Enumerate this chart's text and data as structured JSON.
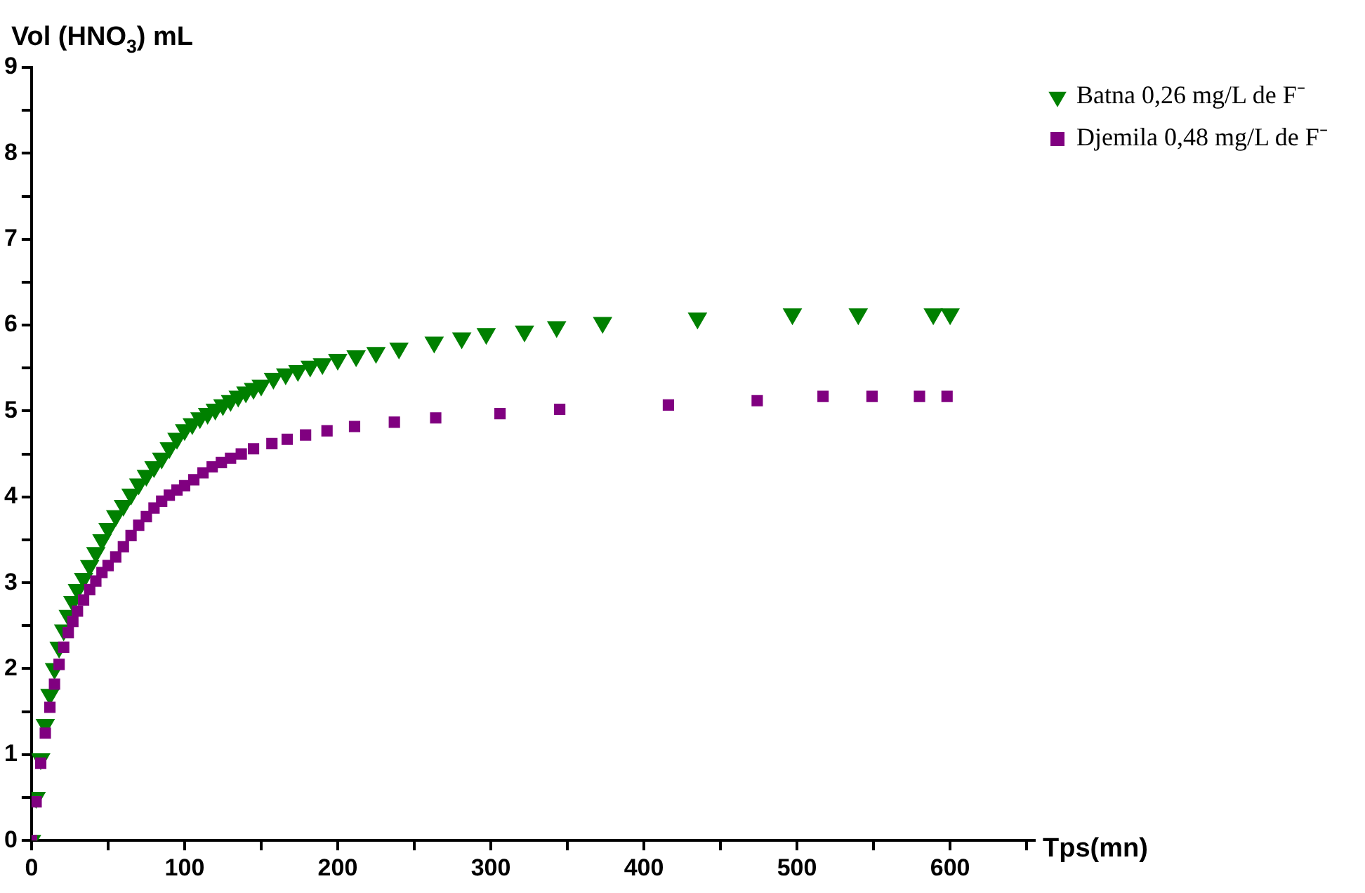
{
  "chart_data": {
    "type": "scatter",
    "xlabel": "Tps(mn)",
    "ylabel": "Vol (HNO$_{3}$) mL",
    "xlim": [
      0,
      655
    ],
    "ylim": [
      0,
      9
    ],
    "xticks": [
      0,
      {
        "value": 50,
        "label": null
      },
      100,
      {
        "value": 150,
        "label": null
      },
      200,
      {
        "value": 250,
        "label": null
      },
      300,
      {
        "value": 350,
        "label": null
      },
      400,
      {
        "value": 450,
        "label": null
      },
      500,
      {
        "value": 550,
        "label": null
      },
      600,
      {
        "value": 650,
        "label": null
      }
    ],
    "yticks": [
      0,
      {
        "value": 0.5,
        "label": null
      },
      1,
      {
        "value": 1.5,
        "label": null
      },
      2,
      {
        "value": 2.5,
        "label": null
      },
      3,
      {
        "value": 3.5,
        "label": null
      },
      4,
      {
        "value": 4.5,
        "label": null
      },
      5,
      {
        "value": 5.5,
        "label": null
      },
      6,
      {
        "value": 6.5,
        "label": null
      },
      7,
      {
        "value": 7.5,
        "label": null
      },
      8,
      {
        "value": 8.5,
        "label": null
      },
      9
    ],
    "grid": false,
    "legend": "top right",
    "series": [
      {
        "name": "Batna 0,26 mg/L de F⁻",
        "color": "#008000",
        "marker": "triangle",
        "x": [
          0,
          3,
          6,
          9,
          12,
          15,
          18,
          21,
          24,
          27,
          30,
          34,
          38,
          42,
          46,
          50,
          55,
          60,
          65,
          70,
          75,
          80,
          85,
          90,
          95,
          100,
          105,
          110,
          115,
          120,
          125,
          130,
          135,
          140,
          145,
          150,
          158,
          166,
          174,
          182,
          190,
          200,
          212,
          225,
          240,
          263,
          281,
          297,
          322,
          343,
          373,
          435,
          497,
          540,
          589,
          600
        ],
        "values": [
          0,
          0.5,
          0.95,
          1.35,
          1.7,
          2.0,
          2.25,
          2.45,
          2.62,
          2.78,
          2.92,
          3.05,
          3.2,
          3.35,
          3.5,
          3.63,
          3.78,
          3.9,
          4.03,
          4.15,
          4.25,
          4.35,
          4.45,
          4.57,
          4.68,
          4.78,
          4.85,
          4.92,
          4.97,
          5.02,
          5.07,
          5.12,
          5.17,
          5.22,
          5.26,
          5.3,
          5.38,
          5.43,
          5.47,
          5.52,
          5.55,
          5.6,
          5.64,
          5.68,
          5.73,
          5.8,
          5.85,
          5.9,
          5.93,
          5.98,
          6.03,
          6.08,
          6.13,
          6.13,
          6.13,
          6.13
        ]
      },
      {
        "name": "Djemila 0,48 mg/L de F⁻",
        "color": "#800080",
        "marker": "square",
        "x": [
          0,
          3,
          6,
          9,
          12,
          15,
          18,
          21,
          24,
          27,
          30,
          34,
          38,
          42,
          46,
          50,
          55,
          60,
          65,
          70,
          75,
          80,
          85,
          90,
          95,
          100,
          106,
          112,
          118,
          124,
          130,
          137,
          145,
          157,
          167,
          179,
          193,
          211,
          237,
          264,
          306,
          345,
          416,
          474,
          517,
          549,
          580,
          598
        ],
        "values": [
          0,
          0.45,
          0.9,
          1.25,
          1.55,
          1.82,
          2.05,
          2.25,
          2.42,
          2.55,
          2.67,
          2.8,
          2.92,
          3.02,
          3.12,
          3.2,
          3.3,
          3.42,
          3.55,
          3.67,
          3.77,
          3.87,
          3.95,
          4.02,
          4.08,
          4.13,
          4.2,
          4.28,
          4.35,
          4.4,
          4.45,
          4.5,
          4.56,
          4.62,
          4.67,
          4.72,
          4.77,
          4.82,
          4.87,
          4.92,
          4.97,
          5.02,
          5.07,
          5.12,
          5.17,
          5.17,
          5.17,
          5.17
        ]
      }
    ]
  }
}
